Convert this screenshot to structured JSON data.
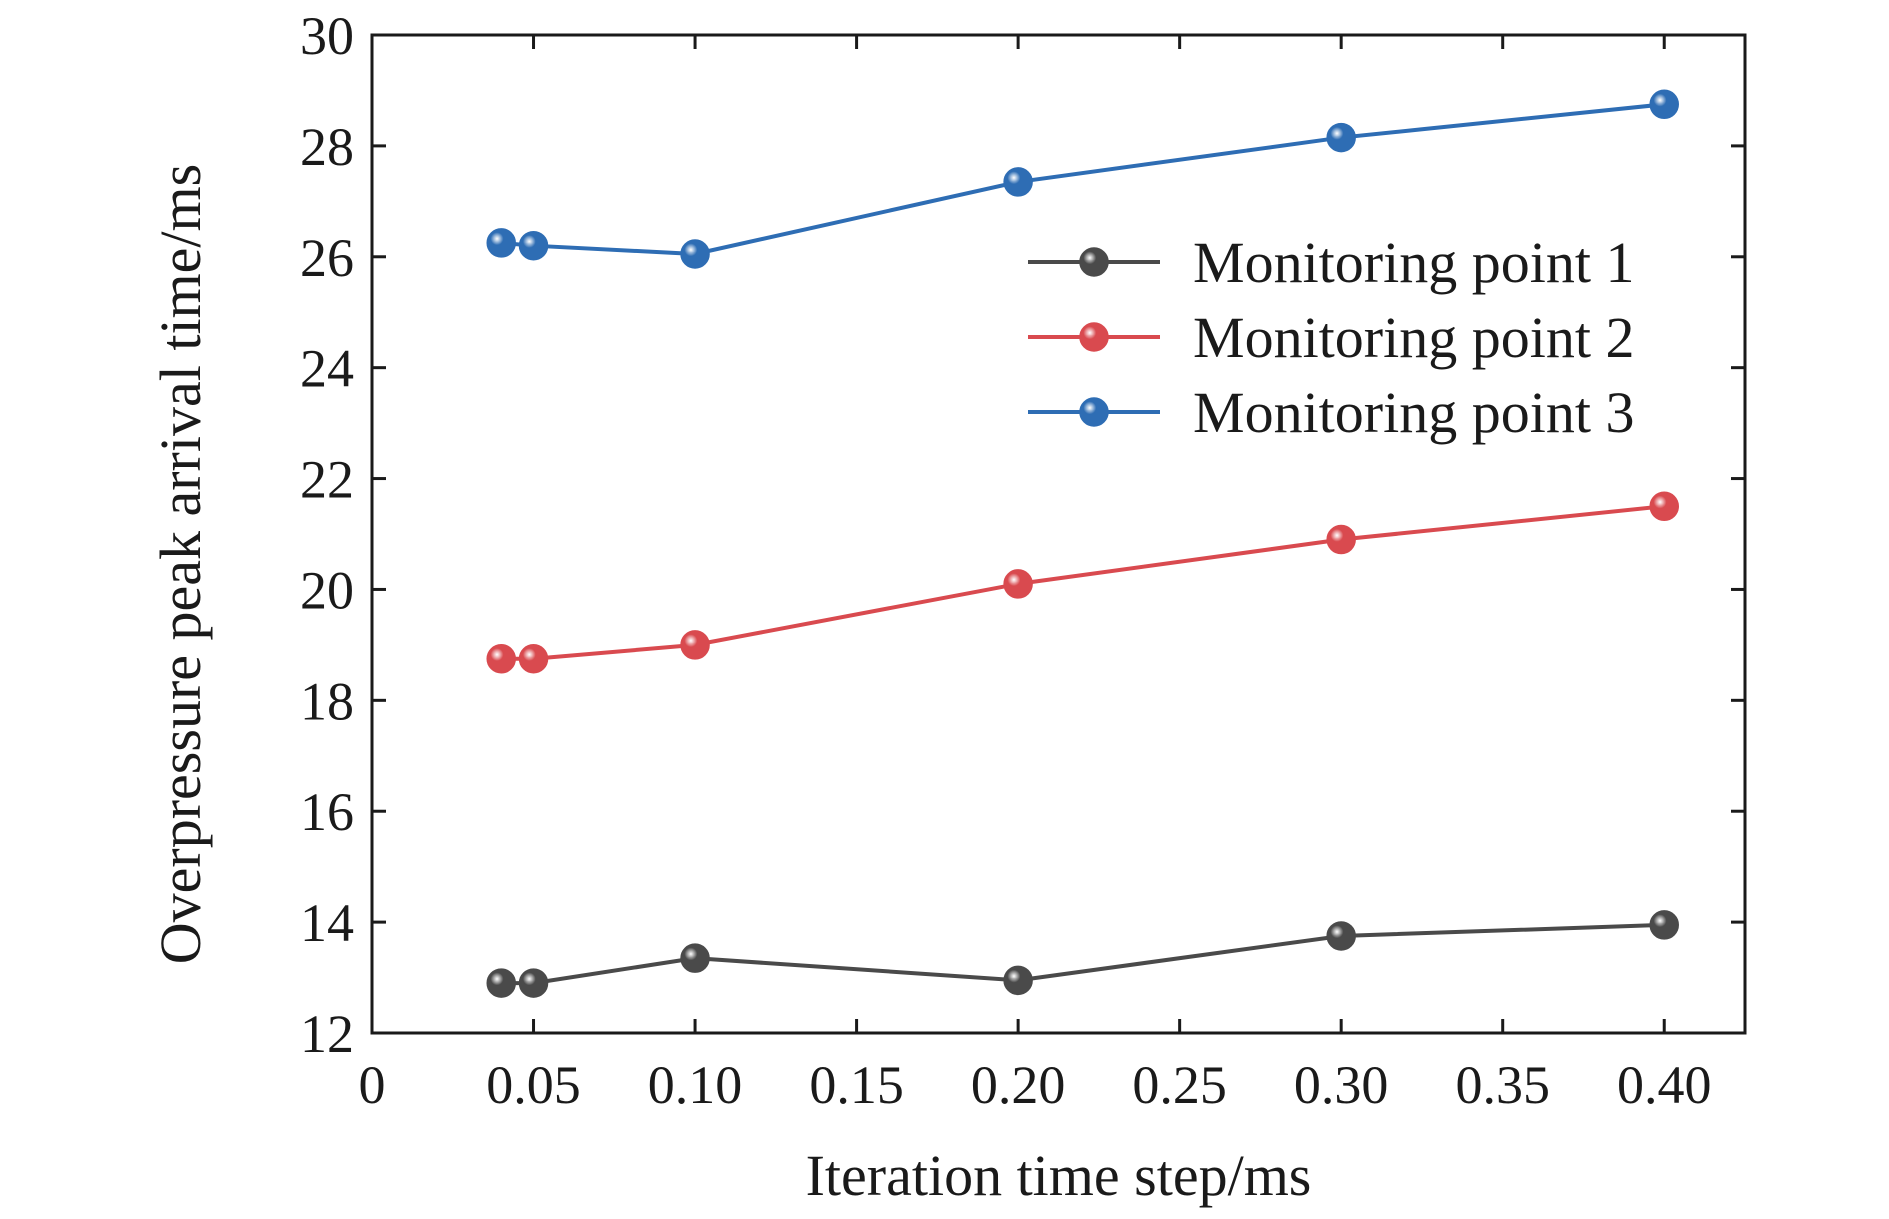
{
  "chart_data": {
    "type": "line",
    "title": "",
    "xlabel": "Iteration time step/ms",
    "ylabel": "Overpressure peak arrival time/ms",
    "xlim": [
      0,
      0.425
    ],
    "ylim": [
      12,
      30
    ],
    "x_ticks": [
      0,
      0.05,
      0.1,
      0.15,
      0.2,
      0.25,
      0.3,
      0.35,
      0.4
    ],
    "x_tick_labels": [
      "0",
      "0.05",
      "0.10",
      "0.15",
      "0.20",
      "0.25",
      "0.30",
      "0.35",
      "0.40"
    ],
    "y_ticks": [
      12,
      14,
      16,
      18,
      20,
      22,
      24,
      26,
      28,
      30
    ],
    "y_tick_labels": [
      "12",
      "14",
      "16",
      "18",
      "20",
      "22",
      "24",
      "26",
      "28",
      "30"
    ],
    "grid": false,
    "legend_position": "upper-right",
    "x": [
      0.04,
      0.05,
      0.1,
      0.2,
      0.3,
      0.4
    ],
    "series": [
      {
        "name": "Monitoring point 1",
        "color": "#4a4a4a",
        "values": [
          12.9,
          12.9,
          13.35,
          12.95,
          13.75,
          13.95
        ]
      },
      {
        "name": "Monitoring point 2",
        "color": "#d94a4f",
        "values": [
          18.75,
          18.75,
          19.0,
          20.1,
          20.9,
          21.5
        ]
      },
      {
        "name": "Monitoring point 3",
        "color": "#2e6db4",
        "values": [
          26.25,
          26.2,
          26.05,
          27.35,
          28.15,
          28.75
        ]
      }
    ]
  }
}
